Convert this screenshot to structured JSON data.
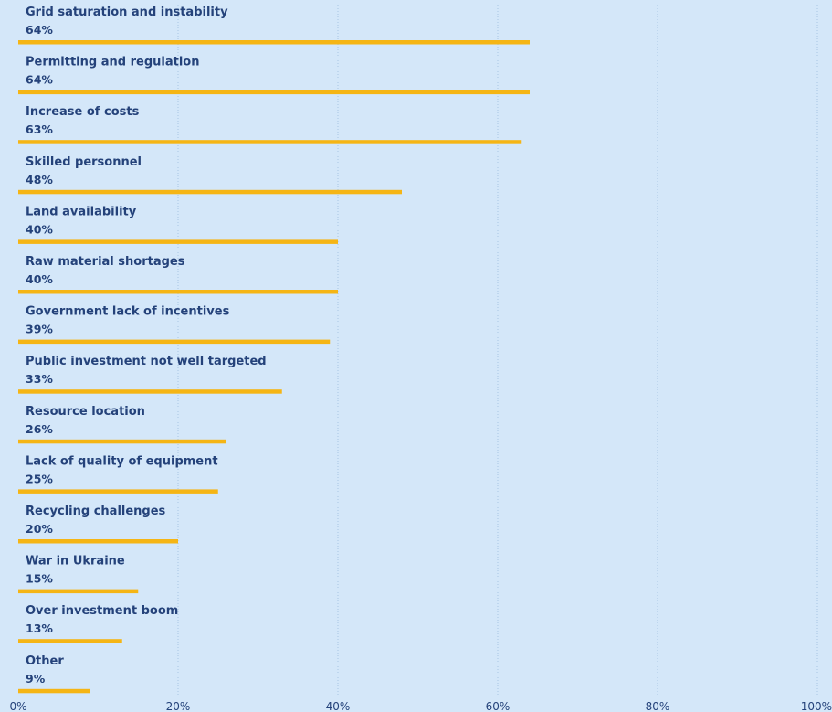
{
  "chart_data": {
    "type": "bar",
    "orientation": "horizontal",
    "categories": [
      "Grid saturation and instability",
      "Permitting and regulation",
      "Increase of costs",
      "Skilled personnel",
      "Land availability",
      "Raw material shortages",
      "Government lack of incentives",
      "Public investment not well targeted",
      "Resource location",
      "Lack of quality of equipment",
      "Recycling challenges",
      "War in Ukraine",
      "Over investment boom",
      "Other"
    ],
    "values": [
      64,
      64,
      63,
      48,
      40,
      40,
      39,
      33,
      26,
      25,
      20,
      15,
      13,
      9
    ],
    "value_labels": [
      "64%",
      "64%",
      "63%",
      "48%",
      "40%",
      "40%",
      "39%",
      "33%",
      "26%",
      "25%",
      "20%",
      "15%",
      "13%",
      "9%"
    ],
    "title": "",
    "xlabel": "",
    "ylabel": "",
    "xlim": [
      0,
      100
    ],
    "x_ticks": [
      0,
      20,
      40,
      60,
      80,
      100
    ],
    "x_tick_labels": [
      "0%",
      "20%",
      "40%",
      "60%",
      "80%",
      "100%"
    ],
    "grid": true,
    "legend": "none",
    "colors": {
      "background": "#d4e7f9",
      "bar": "#f5b515",
      "text": "#24427a",
      "grid": "#a9c6e3"
    }
  }
}
